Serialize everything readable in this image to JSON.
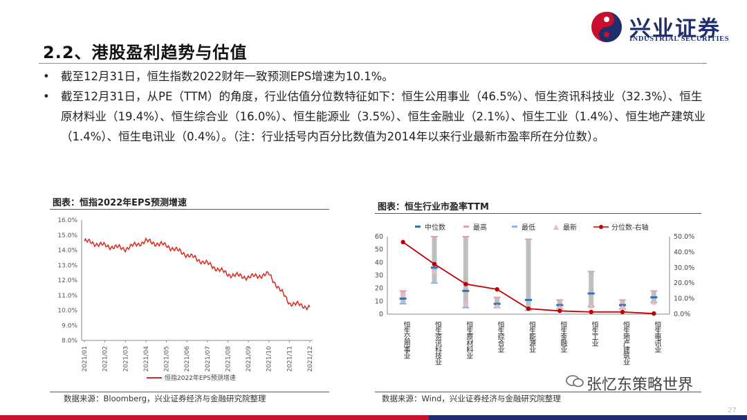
{
  "header": {
    "title": "2.2、港股盈利趋势与估值",
    "logo_cn": "兴业证券",
    "logo_en": "INDUSTRIAL SECURITIES"
  },
  "bullets": [
    "截至12月31日，恒生指数2022财年一致预测EPS增速为10.1%。",
    "截至12月31日，从PE（TTM）的角度，行业估值分位数特征如下：恒生公用事业（46.5%）、恒生资讯科技业（32.3%）、恒生原材料业（19.4%）、恒生综合业（16.0%）、恒生能源业（3.5%）、恒生金融业（2.1%）、恒生工业（1.4%）、恒生地产建筑业（1.4%）、恒生电讯业（0.4%）。（注：行业括号内百分比数值为2014年以来行业最新市盈率所在分位数）。"
  ],
  "bullet_marker": "•",
  "chart1": {
    "title": "图表：恒指2022年EPS预测增速",
    "source": "数据来源：Bloomberg，兴业证券经济与金融研究院整理",
    "line_color": "#d9281e"
  },
  "chart2": {
    "title": "图表：恒生行业市盈率TTM",
    "source": "数据来源：Wind，兴业证券经济与金融研究院整理",
    "colors": {
      "median": "#2e75b6",
      "high": "#e8a0a8",
      "low": "#8db4e2",
      "latest": "#f4b6c2",
      "bar": "#bfbfbf",
      "pct": "#c00000"
    }
  },
  "chart_data": [
    {
      "type": "line",
      "x": [
        "2021/01",
        "2021/02",
        "2021/03",
        "2021/04",
        "2021/05",
        "2021/06",
        "2021/07",
        "2021/08",
        "2021/09",
        "2021/10",
        "2021/11",
        "2021/12"
      ],
      "series": [
        {
          "name": "恒指2022年EPS预测增速",
          "values": [
            14.6,
            14.3,
            14.1,
            14.6,
            14.3,
            13.7,
            13.1,
            12.4,
            12.2,
            12.4,
            10.5,
            10.2
          ]
        }
      ],
      "ylim": [
        8.0,
        16.0
      ],
      "y_ticks": [
        "8.0%",
        "9.0%",
        "10.0%",
        "11.0%",
        "12.0%",
        "13.0%",
        "14.0%",
        "15.0%",
        "16.0%"
      ],
      "legend": "bottom"
    },
    {
      "type": "bar",
      "categories": [
        "恒生公用事业",
        "恒生资讯科技业",
        "恒生原材料业",
        "恒生综合业",
        "恒生能源业",
        "恒生金融业",
        "恒生工业",
        "恒生地产建筑业",
        "恒生电讯业"
      ],
      "legend_labels": [
        "中位数",
        "最高",
        "最低",
        "最新",
        "分位数-右轴"
      ],
      "series": [
        {
          "name": "最低",
          "values": [
            8,
            24,
            5,
            5,
            3,
            4,
            6,
            4,
            9
          ]
        },
        {
          "name": "最高",
          "values": [
            18,
            60,
            60,
            13,
            58,
            11,
            33,
            11,
            18
          ]
        },
        {
          "name": "中位数",
          "values": [
            12,
            36,
            18,
            8,
            11,
            7,
            16,
            7,
            13
          ]
        },
        {
          "name": "最新",
          "values": [
            15,
            33,
            8,
            6,
            5,
            5,
            6,
            5,
            9
          ]
        },
        {
          "name": "分位数-右轴",
          "values": [
            46.5,
            32.3,
            19.4,
            16.0,
            3.5,
            2.1,
            1.4,
            1.4,
            0.4
          ]
        }
      ],
      "ylim": [
        0,
        60
      ],
      "y_ticks": [
        "0",
        "10",
        "20",
        "30",
        "40",
        "50",
        "60"
      ],
      "y2lim": [
        0,
        50
      ],
      "y2_ticks": [
        "0.0%",
        "10.0%",
        "20.0%",
        "30.0%",
        "40.0%",
        "50.0%"
      ],
      "y2_tick_step": 5,
      "legend": "top"
    }
  ],
  "watermark": "张忆东策略世界",
  "page_number": "27"
}
